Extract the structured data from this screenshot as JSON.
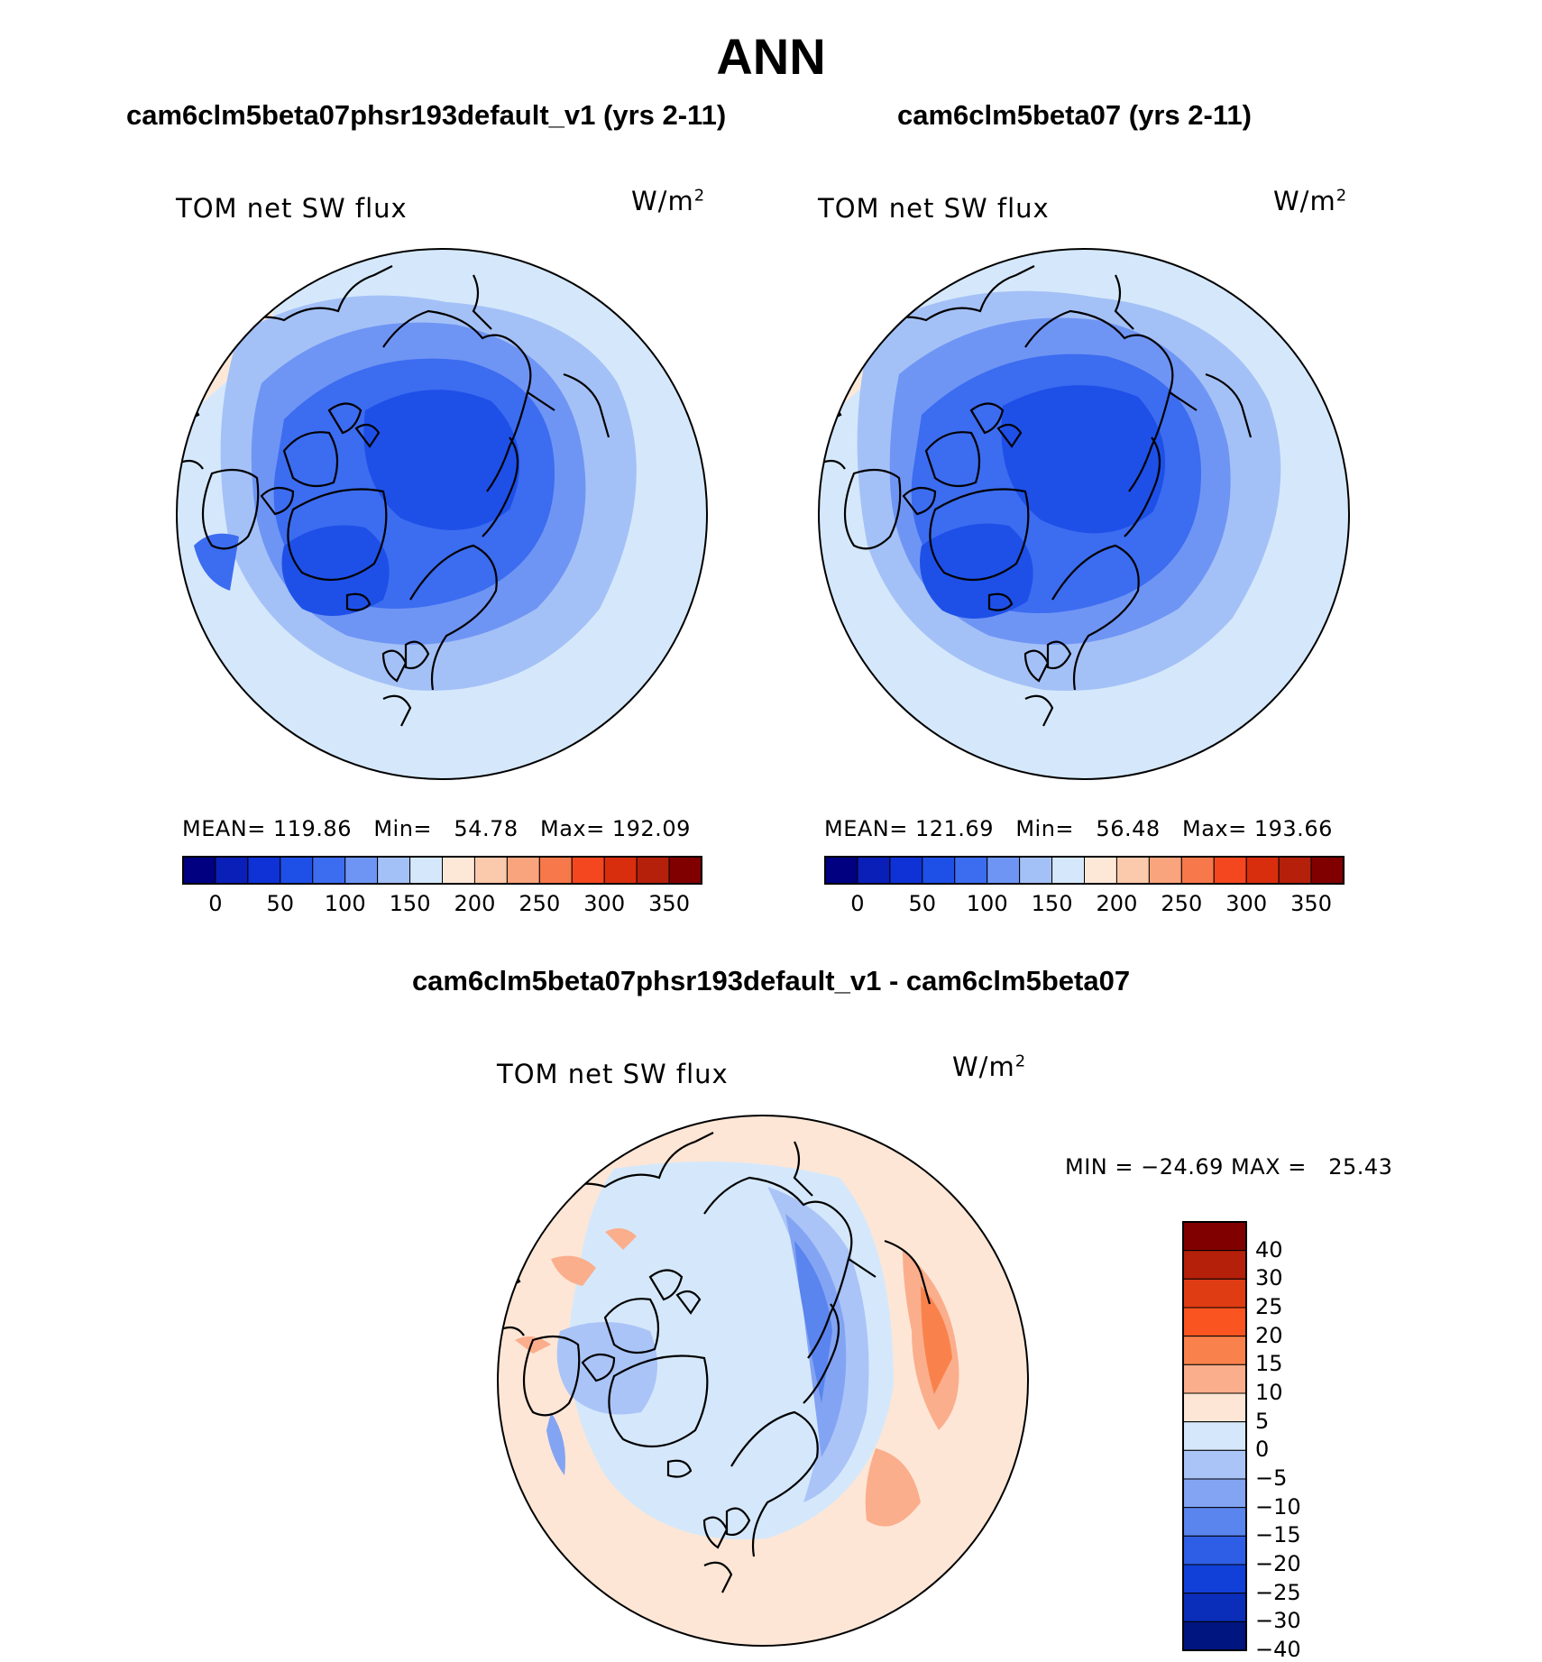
{
  "title": "ANN",
  "panels": [
    {
      "case_title": "cam6clm5beta07phsr193default_v1 (yrs 2-11)",
      "variable": "TOM net SW flux",
      "units_base": "W/m",
      "units_exp": "2",
      "stats": "MEAN= 119.86   Min=   54.78   Max= 192.09",
      "colorbar_ticks": [
        "0",
        "50",
        "100",
        "150",
        "200",
        "250",
        "300",
        "350"
      ]
    },
    {
      "case_title": "cam6clm5beta07 (yrs 2-11)",
      "variable": "TOM net SW flux",
      "units_base": "W/m",
      "units_exp": "2",
      "stats": "MEAN= 121.69   Min=   56.48   Max= 193.66",
      "colorbar_ticks": [
        "0",
        "50",
        "100",
        "150",
        "200",
        "250",
        "300",
        "350"
      ]
    }
  ],
  "diff_panel": {
    "case_title": "cam6clm5beta07phsr193default_v1 - cam6clm5beta07",
    "variable": "TOM net SW flux",
    "units_base": "W/m",
    "units_exp": "2",
    "stats": "MIN = −24.69 MAX =   25.43",
    "colorbar_ticks": [
      "40",
      "30",
      "25",
      "20",
      "15",
      "10",
      "5",
      "0",
      "−5",
      "−10",
      "−15",
      "−20",
      "−25",
      "−30",
      "−40"
    ]
  },
  "colors": {
    "abs_scale": [
      "#000080",
      "#0a1fb8",
      "#0f32d6",
      "#1e50e8",
      "#3c6cf0",
      "#6f95f4",
      "#a4c1f7",
      "#d5e8fb",
      "#fde8d8",
      "#fbc9ac",
      "#f9a47c",
      "#f7784a",
      "#f4471f",
      "#d92e0d",
      "#b5200b",
      "#800000"
    ],
    "diff_scale": [
      "#800000",
      "#b5200b",
      "#e03c14",
      "#fa5520",
      "#f9824c",
      "#fbae8c",
      "#fde6d6",
      "#d5e8fb",
      "#aac4f7",
      "#83a4f3",
      "#5a84ee",
      "#2f5ee6",
      "#1040d8",
      "#0a2dba",
      "#00157f"
    ],
    "coast": "#000000"
  },
  "chart_data": [
    {
      "type": "heatmap",
      "projection": "north polar stereographic",
      "title": "cam6clm5beta07phsr193default_v1 (yrs 2-11)",
      "variable": "TOM net SW flux",
      "units": "W/m2",
      "mean": 119.86,
      "min": 54.78,
      "max": 192.09,
      "contour_levels": [
        0,
        25,
        50,
        75,
        100,
        125,
        150,
        175,
        200,
        225,
        250,
        275,
        300,
        325,
        350
      ]
    },
    {
      "type": "heatmap",
      "projection": "north polar stereographic",
      "title": "cam6clm5beta07 (yrs 2-11)",
      "variable": "TOM net SW flux",
      "units": "W/m2",
      "mean": 121.69,
      "min": 56.48,
      "max": 193.66,
      "contour_levels": [
        0,
        25,
        50,
        75,
        100,
        125,
        150,
        175,
        200,
        225,
        250,
        275,
        300,
        325,
        350
      ]
    },
    {
      "type": "heatmap",
      "projection": "north polar stereographic",
      "title": "cam6clm5beta07phsr193default_v1 - cam6clm5beta07",
      "variable": "TOM net SW flux",
      "units": "W/m2",
      "min": -24.69,
      "max": 25.43,
      "contour_levels": [
        -40,
        -30,
        -25,
        -20,
        -15,
        -10,
        -5,
        0,
        5,
        10,
        15,
        20,
        25,
        30,
        40
      ]
    }
  ]
}
